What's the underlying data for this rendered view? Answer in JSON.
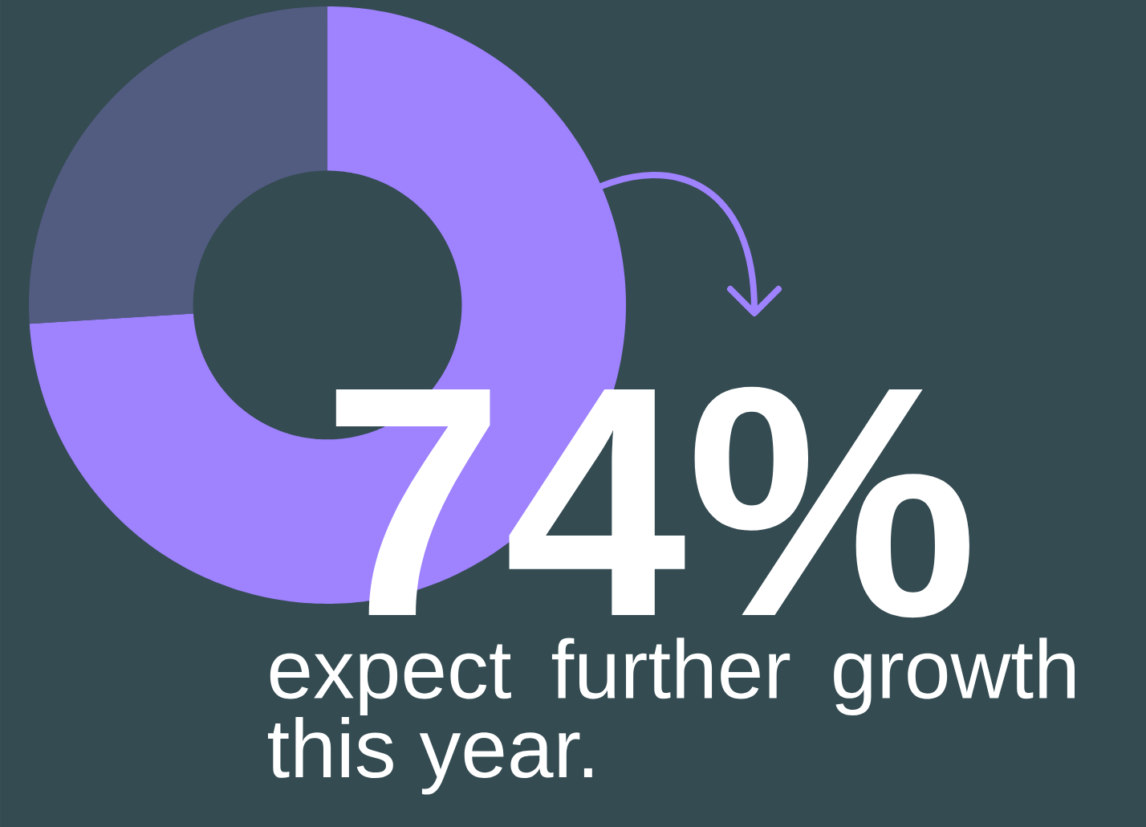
{
  "chart_data": {
    "type": "donut",
    "categories": [
      null,
      null
    ],
    "values": [
      74,
      26
    ],
    "colors": [
      "#9e82fe",
      "#525b80"
    ],
    "value_labels": [
      "74%",
      null
    ],
    "annotations": [
      "expect further growth this year."
    ]
  }
}
